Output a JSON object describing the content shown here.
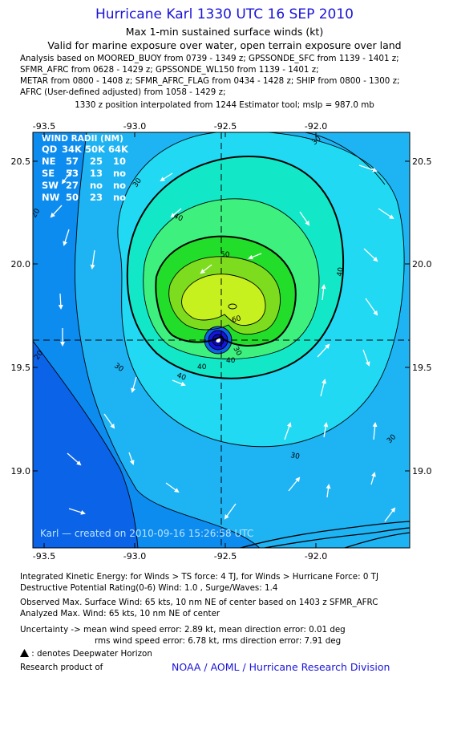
{
  "header": {
    "title": "Hurricane Karl 1330 UTC 16 SEP 2010",
    "subtitle1": "Max 1-min sustained surface winds (kt)",
    "subtitle2": "Valid for marine exposure over water, open terrain exposure over land",
    "analysis_lines": [
      "Analysis based on MOORED_BUOY from 0739 - 1349 z; GPSSONDE_SFC from 1139 - 1401 z;",
      "SFMR_AFRC from 0628 - 1429 z; GPSSONDE_WL150 from 1139 - 1401 z;",
      "METAR from 0800 - 1408 z; SFMR_AFRC_FLAG from 0434 - 1428 z; SHIP from 0800 - 1300 z;",
      "AFRC (User-defined adjusted) from 1058 - 1429 z;"
    ],
    "position_note": "1330 z position interpolated from 1244 Estimator tool; mslp = 987.0 mb"
  },
  "map": {
    "lon_ticks": [
      "-93.5",
      "-93.0",
      "-92.5",
      "-92.0"
    ],
    "lat_ticks": [
      "20.5",
      "20.0",
      "19.5",
      "19.0"
    ],
    "wind_radii": {
      "title": "WIND RADII (NM)",
      "header": [
        "QD",
        "34K",
        "50K",
        "64K"
      ],
      "rows": [
        [
          "NE",
          "57",
          "25",
          "10"
        ],
        [
          "SE",
          "53",
          "13",
          "no"
        ],
        [
          "SW",
          "27",
          "no",
          "no"
        ],
        [
          "NW",
          "50",
          "23",
          "no"
        ]
      ]
    },
    "contour_labels": [
      "30",
      "30",
      "30",
      "30",
      "20",
      "20",
      "30",
      "40",
      "40",
      "40",
      "50",
      "60",
      "40",
      "40",
      "30"
    ],
    "credit": "Karl — created on 2010-09-16 15:26:58 UTC",
    "colors": {
      "deep_blue": "#0b63e8",
      "mid_blue": "#0d8cf0",
      "light_blue": "#1eb4f4",
      "cyan": "#21d9f2",
      "aqua": "#12e8c8",
      "green_30": "#3ef07e",
      "green_40": "#22de2a",
      "green_50": "#7edc1e",
      "yellow": "#c6f01e",
      "core_blue": "#1414e0",
      "land": "#000000"
    }
  },
  "footer": {
    "ike": "Integrated Kinetic Energy:  for Winds > TS force: 4 TJ,  for Winds > Hurricane Force: 0 TJ",
    "dpr": "Destructive Potential Rating(0-6)   Wind: 1.0 , Surge/Waves: 1.4",
    "observed": "Observed Max. Surface Wind: 65 kts, 10 nm NE of center based on 1403 z SFMR_AFRC",
    "analyzed": "Analyzed Max. Wind: 65 kts, 10 nm NE of center",
    "uncertainty1": "Uncertainty -> mean wind speed error: 2.89 kt,   mean direction error: 0.01 deg",
    "uncertainty2": "rms wind speed error: 6.78 kt,   rms direction error: 7.91 deg",
    "deepwater_note": ": denotes Deepwater Horizon",
    "research": "Research product of",
    "noaa": "NOAA / AOML / Hurricane Research Division"
  }
}
